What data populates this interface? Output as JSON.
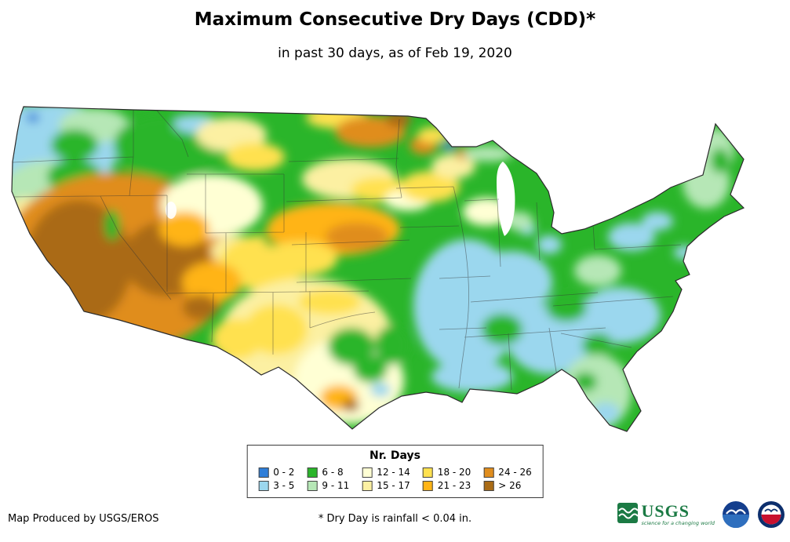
{
  "header": {
    "title": "Maximum Consecutive Dry Days (CDD)*",
    "subtitle": "in past 30 days, as of Feb 19, 2020"
  },
  "map": {
    "region": "Contiguous United States",
    "variable": "Maximum consecutive dry days in past 30 days",
    "as_of_date": "Feb 19, 2020",
    "pattern_summary": "Highest values (orange/brown, more than 26 dry days) over California, Nevada and Arizona; amber/orange over Nebraska, Kansas and the Dakotas; mostly greens and light blues (0-11 days) across the Pacific Northwest, Midwest, South and East."
  },
  "legend": {
    "title": "Nr. Days",
    "items": [
      {
        "label": "0 - 2",
        "color": "#2f7ed8"
      },
      {
        "label": "3 - 5",
        "color": "#9bd7ee"
      },
      {
        "label": "6 - 8",
        "color": "#2ab52a"
      },
      {
        "label": "9 - 11",
        "color": "#b6e7b6"
      },
      {
        "label": "12 - 14",
        "color": "#ffffd4"
      },
      {
        "label": "15 - 17",
        "color": "#fcf0a2"
      },
      {
        "label": "18 - 20",
        "color": "#ffe14f"
      },
      {
        "label": "21 - 23",
        "color": "#ffb415"
      },
      {
        "label": "24 - 26",
        "color": "#e08d1d"
      },
      {
        "label": "> 26",
        "color": "#aa6b15"
      }
    ]
  },
  "footer": {
    "credit": "Map Produced by USGS/EROS",
    "note": "* Dry Day is rainfall < 0.04 in.",
    "usgs_logo": {
      "text": "USGS",
      "tagline": "science for a changing world"
    },
    "noaa_logo": "noaa-emblem",
    "nws_logo": "national-weather-service-emblem"
  }
}
